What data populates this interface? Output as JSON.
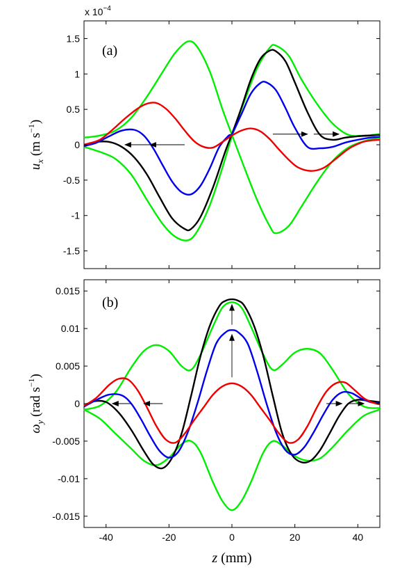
{
  "figure": {
    "exponent_label": "x 10^{-4}",
    "xlabel_var": "z",
    "xlabel_unit": "(mm)"
  },
  "chart_data": [
    {
      "type": "line",
      "panel_label": "(a)",
      "ylabel_var": "u_x",
      "ylabel_unit": "(m s^{-1})",
      "xlim": [
        -47,
        47
      ],
      "ylim": [
        -1.75,
        1.75
      ],
      "x_ticks": [
        -40,
        -20,
        0,
        20,
        40
      ],
      "y_ticks": [
        -1.5,
        -1,
        -0.5,
        0,
        0.5,
        1,
        1.5
      ],
      "y_tick_labels": [
        "-1.5",
        "-1",
        "-0.5",
        "0",
        "0.5",
        "1",
        "1.5"
      ],
      "series": [
        {
          "color": "#00ee00",
          "x": [
            -47,
            -42,
            -37,
            -32,
            -27,
            -22,
            -18,
            -14,
            -11,
            -7,
            -3,
            0,
            4,
            8,
            12,
            14,
            18,
            22,
            27,
            32,
            37,
            42,
            47
          ],
          "y": [
            0.1,
            0.13,
            0.2,
            0.38,
            0.68,
            1.03,
            1.3,
            1.46,
            1.38,
            1.03,
            0.5,
            0.14,
            -0.33,
            -0.78,
            -1.15,
            -1.25,
            -1.15,
            -0.88,
            -0.53,
            -0.23,
            -0.04,
            0.05,
            0.1
          ]
        },
        {
          "color": "#00ee00",
          "x": [
            -47,
            -42,
            -37,
            -32,
            -27,
            -22,
            -18,
            -14,
            -11,
            -7,
            -3,
            0,
            4,
            8,
            12,
            14,
            18,
            22,
            27,
            32,
            37,
            42,
            47
          ],
          "y": [
            -0.03,
            -0.1,
            -0.2,
            -0.42,
            -0.78,
            -1.12,
            -1.3,
            -1.35,
            -1.22,
            -0.85,
            -0.32,
            0.12,
            0.62,
            1.08,
            1.37,
            1.4,
            1.26,
            0.93,
            0.58,
            0.3,
            0.14,
            0.13,
            0.15
          ]
        },
        {
          "color": "#000000",
          "x": [
            -47,
            -43,
            -39,
            -35,
            -31,
            -27,
            -23,
            -19,
            -15,
            -13,
            -10,
            -6,
            -2,
            0,
            3,
            6,
            9,
            12,
            14,
            17,
            20,
            24,
            28,
            32,
            36,
            40,
            44,
            47
          ],
          "y": [
            0.0,
            0.04,
            0.04,
            -0.03,
            -0.18,
            -0.42,
            -0.74,
            -1.04,
            -1.19,
            -1.19,
            -1.02,
            -0.6,
            -0.08,
            0.15,
            0.52,
            0.92,
            1.21,
            1.33,
            1.32,
            1.18,
            0.88,
            0.46,
            0.14,
            0.07,
            0.1,
            0.12,
            0.13,
            0.14
          ]
        },
        {
          "color": "#0000ee",
          "x": [
            -47,
            -43,
            -39,
            -35,
            -31,
            -28,
            -25,
            -22,
            -19,
            -16,
            -13,
            -10,
            -7,
            -4,
            -1,
            0,
            3,
            6,
            9,
            11,
            14,
            17,
            20,
            24,
            28,
            32,
            36,
            40,
            44,
            47
          ],
          "y": [
            -0.02,
            0.03,
            0.12,
            0.2,
            0.21,
            0.13,
            -0.05,
            -0.29,
            -0.52,
            -0.67,
            -0.7,
            -0.58,
            -0.33,
            -0.03,
            0.13,
            0.15,
            0.43,
            0.72,
            0.87,
            0.88,
            0.77,
            0.52,
            0.24,
            -0.03,
            -0.05,
            -0.03,
            0.03,
            0.07,
            0.1,
            0.11
          ]
        },
        {
          "color": "#ee0000",
          "x": [
            -47,
            -42,
            -38,
            -34,
            -30,
            -27,
            -24,
            -21,
            -18,
            -15,
            -12,
            -9,
            -6,
            -3,
            0,
            3,
            6,
            9,
            12,
            15,
            18,
            21,
            25,
            29,
            33,
            37,
            41,
            44,
            47
          ],
          "y": [
            0.0,
            0.07,
            0.21,
            0.37,
            0.51,
            0.58,
            0.59,
            0.51,
            0.37,
            0.2,
            0.05,
            -0.03,
            -0.04,
            0.04,
            0.13,
            0.2,
            0.23,
            0.19,
            0.08,
            -0.07,
            -0.21,
            -0.32,
            -0.37,
            -0.33,
            -0.2,
            -0.06,
            0.03,
            0.06,
            0.07
          ]
        }
      ],
      "arrows": [
        {
          "from": [
            -15,
            0.0
          ],
          "to": [
            -26,
            0.0
          ]
        },
        {
          "from": [
            -26,
            0.0
          ],
          "to": [
            -34,
            0.0
          ]
        },
        {
          "from": [
            13,
            0.15
          ],
          "to": [
            24,
            0.15
          ]
        },
        {
          "from": [
            26,
            0.15
          ],
          "to": [
            34,
            0.15
          ]
        }
      ]
    },
    {
      "type": "line",
      "panel_label": "(b)",
      "ylabel_var": "ω_y",
      "ylabel_unit": "(rad s^{-1})",
      "xlim": [
        -47,
        47
      ],
      "ylim": [
        -0.0165,
        0.0165
      ],
      "x_ticks": [
        -40,
        -20,
        0,
        20,
        40
      ],
      "x_tick_labels": [
        "-40",
        "-20",
        "0",
        "20",
        "40"
      ],
      "y_ticks": [
        -0.015,
        -0.01,
        -0.005,
        0,
        0.005,
        0.01,
        0.015
      ],
      "y_tick_labels": [
        "-0.015",
        "-0.01",
        "-0.005",
        "0",
        "0.005",
        "0.01",
        "0.015"
      ],
      "series": [
        {
          "color": "#00ee00",
          "x": [
            -47,
            -42,
            -37,
            -32,
            -28,
            -24,
            -20,
            -16,
            -13,
            -10,
            -6,
            -3,
            0,
            3,
            6,
            10,
            13,
            16,
            20,
            24,
            28,
            32,
            37,
            42,
            47
          ],
          "y": [
            -0.0008,
            -0.0003,
            0.0015,
            0.0048,
            0.007,
            0.0078,
            0.007,
            0.005,
            0.0045,
            0.0065,
            0.0103,
            0.0128,
            0.0135,
            0.0128,
            0.0103,
            0.0065,
            0.0045,
            0.0052,
            0.0068,
            0.0073,
            0.0067,
            0.0045,
            0.0013,
            -0.0004,
            -0.0006
          ]
        },
        {
          "color": "#00ee00",
          "x": [
            -47,
            -42,
            -37,
            -32,
            -28,
            -24,
            -20,
            -16,
            -13,
            -10,
            -6,
            -3,
            0,
            3,
            6,
            10,
            13,
            16,
            20,
            24,
            28,
            32,
            37,
            42,
            47
          ],
          "y": [
            -0.0008,
            -0.002,
            -0.004,
            -0.006,
            -0.0076,
            -0.0082,
            -0.0072,
            -0.0054,
            -0.005,
            -0.0065,
            -0.0105,
            -0.013,
            -0.0142,
            -0.013,
            -0.0105,
            -0.0065,
            -0.005,
            -0.0056,
            -0.007,
            -0.0076,
            -0.0073,
            -0.0058,
            -0.0035,
            -0.0016,
            -0.0008
          ]
        },
        {
          "color": "#000000",
          "x": [
            -47,
            -44,
            -40,
            -36,
            -32,
            -28,
            -25,
            -22,
            -19,
            -16,
            -13,
            -10,
            -7,
            -4,
            -2,
            0,
            2,
            4,
            7,
            10,
            13,
            16,
            19,
            22,
            25,
            28,
            31,
            34,
            37,
            40,
            43,
            47
          ],
          "y": [
            -0.0003,
            0.0003,
            0.0002,
            -0.0012,
            -0.0035,
            -0.0063,
            -0.0081,
            -0.0086,
            -0.0072,
            -0.004,
            0.001,
            0.0063,
            0.0104,
            0.013,
            0.0137,
            0.0139,
            0.0137,
            0.013,
            0.0104,
            0.0063,
            0.001,
            -0.004,
            -0.0068,
            -0.0078,
            -0.0076,
            -0.0062,
            -0.004,
            -0.0017,
            0.0,
            0.0005,
            0.0004,
            0.0002
          ]
        },
        {
          "color": "#0000ee",
          "x": [
            -47,
            -43,
            -39,
            -35,
            -32,
            -29,
            -26,
            -23,
            -20,
            -17,
            -14,
            -11,
            -8,
            -5,
            -2,
            0,
            2,
            5,
            8,
            11,
            14,
            17,
            20,
            23,
            26,
            29,
            32,
            35,
            38,
            41,
            44,
            47
          ],
          "y": [
            -0.0004,
            0.0005,
            0.0012,
            0.0011,
            0.0,
            -0.002,
            -0.0043,
            -0.0063,
            -0.0072,
            -0.0064,
            -0.0038,
            0.0,
            0.0043,
            0.008,
            0.0095,
            0.0098,
            0.0095,
            0.008,
            0.0043,
            0.0,
            -0.0038,
            -0.0062,
            -0.0068,
            -0.0058,
            -0.0038,
            -0.0015,
            0.0005,
            0.0015,
            0.0014,
            0.0007,
            0.0002,
            0.0
          ]
        },
        {
          "color": "#ee0000",
          "x": [
            -47,
            -43,
            -39,
            -36,
            -33,
            -30,
            -27,
            -24,
            -21,
            -18,
            -15,
            -12,
            -9,
            -6,
            -3,
            0,
            3,
            6,
            9,
            12,
            15,
            18,
            21,
            24,
            27,
            30,
            33,
            36,
            39,
            42,
            45,
            47
          ],
          "y": [
            -0.0003,
            0.0008,
            0.0025,
            0.0033,
            0.0032,
            0.0018,
            -0.0005,
            -0.003,
            -0.0048,
            -0.0052,
            -0.004,
            -0.0022,
            -0.0005,
            0.0012,
            0.0023,
            0.0027,
            0.0023,
            0.0012,
            -0.0005,
            -0.0022,
            -0.004,
            -0.0052,
            -0.0048,
            -0.003,
            -0.0005,
            0.0016,
            0.0027,
            0.0028,
            0.0018,
            0.0007,
            0.0001,
            -0.0001
          ]
        }
      ],
      "arrows": [
        {
          "from": [
            -32,
            0.0
          ],
          "to": [
            -38,
            0.0
          ]
        },
        {
          "from": [
            -22,
            0.0
          ],
          "to": [
            -28,
            0.0
          ]
        },
        {
          "from": [
            0,
            0.0035
          ],
          "to": [
            0,
            0.0092
          ]
        },
        {
          "from": [
            0,
            0.0105
          ],
          "to": [
            0,
            0.0132
          ]
        },
        {
          "from": [
            30,
            0.0
          ],
          "to": [
            35,
            0.0
          ]
        },
        {
          "from": [
            37,
            0.0
          ],
          "to": [
            42,
            0.0
          ]
        }
      ]
    }
  ]
}
